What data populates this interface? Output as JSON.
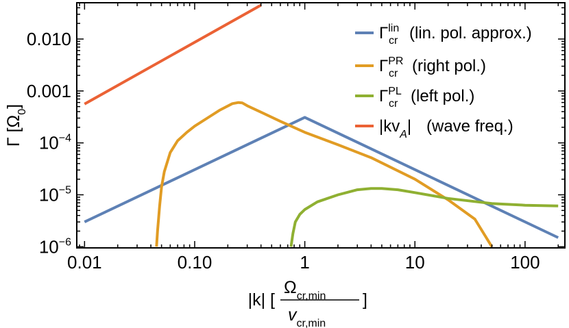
{
  "chart_data": {
    "type": "line",
    "x_scale": "log",
    "y_scale": "log",
    "xlim": [
      0.0085,
      230
    ],
    "ylim": [
      9.5e-07,
      0.05
    ],
    "x_ticks": [
      {
        "value": 0.01,
        "label": "0.01"
      },
      {
        "value": 0.1,
        "label": "0.10"
      },
      {
        "value": 1,
        "label": "1"
      },
      {
        "value": 10,
        "label": "10"
      },
      {
        "value": 100,
        "label": "100"
      }
    ],
    "y_ticks": [
      {
        "value": 1e-06,
        "base": "10",
        "exp": "−6"
      },
      {
        "value": 1e-05,
        "base": "10",
        "exp": "−5"
      },
      {
        "value": 0.0001,
        "base": "10",
        "exp": "−4"
      },
      {
        "value": 0.001,
        "label": "0.001"
      },
      {
        "value": 0.01,
        "label": "0.010"
      }
    ],
    "ylabel": {
      "main": "Γ [Ω",
      "sub": "0",
      "close": "]"
    },
    "xlabel": {
      "left": "|k| [",
      "numerator": {
        "base": "Ω",
        "sub": "cr,min"
      },
      "denominator": {
        "base": "v",
        "sub": "cr,min"
      },
      "right": "]"
    },
    "series": [
      {
        "name": "lin",
        "color": "#5E81B5",
        "legend": {
          "base": "Γ",
          "sup": "lin",
          "sub": "cr",
          "text": "(lin. pol. approx.)"
        },
        "x": [
          0.01,
          1,
          200
        ],
        "y": [
          3e-06,
          0.00031,
          1.5e-06
        ]
      },
      {
        "name": "PR",
        "color": "#E19C24",
        "legend": {
          "base": "Γ",
          "sup": "PR",
          "sub": "cr",
          "text": "(right pol.)"
        },
        "x": [
          0.045,
          0.046,
          0.048,
          0.05,
          0.053,
          0.06,
          0.07,
          0.085,
          0.1,
          0.13,
          0.17,
          0.22,
          0.25,
          0.27,
          0.3,
          0.4,
          0.6,
          1,
          2,
          4,
          10,
          20,
          35,
          50
        ],
        "y": [
          1e-06,
          2e-06,
          6e-06,
          1.4e-05,
          2.8e-05,
          6.5e-05,
          0.00011,
          0.00016,
          0.00021,
          0.0003,
          0.00043,
          0.00057,
          0.0006,
          0.00059,
          0.00052,
          0.00039,
          0.00026,
          0.00016,
          9.2e-05,
          5.2e-05,
          2e-05,
          8e-06,
          3.4e-06,
          1e-06
        ]
      },
      {
        "name": "PL",
        "color": "#8FB032",
        "legend": {
          "base": "Γ",
          "sup": "PL",
          "sub": "cr",
          "text": "(left pol.)"
        },
        "x": [
          0.75,
          0.78,
          0.82,
          0.9,
          1,
          1.3,
          2,
          3,
          4,
          5,
          7,
          10,
          20,
          50,
          100,
          200
        ],
        "y": [
          1e-06,
          1.8e-06,
          3e-06,
          4.2e-06,
          5.2e-06,
          7.3e-06,
          1e-05,
          1.25e-05,
          1.32e-05,
          1.32e-05,
          1.25e-05,
          1.1e-05,
          8.5e-06,
          6.8e-06,
          6.3e-06,
          6.1e-06
        ]
      },
      {
        "name": "wave",
        "color": "#EB6235",
        "legend": {
          "base": "|kv",
          "sub": "A",
          "close": "|",
          "text": "(wave freq.)"
        },
        "x": [
          0.01,
          0.4
        ],
        "y": [
          0.00056,
          0.045
        ]
      }
    ],
    "legend_position": "top-right",
    "grid": false
  }
}
